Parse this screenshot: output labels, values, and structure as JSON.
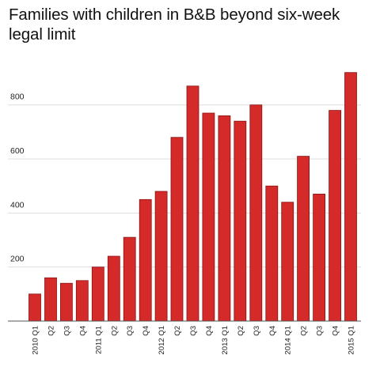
{
  "chart_data": {
    "type": "bar",
    "title": "Families with children in B&B beyond six-week legal limit",
    "xlabel": "",
    "ylabel": "",
    "ylim": [
      0,
      950
    ],
    "yticks": [
      200,
      400,
      600,
      800
    ],
    "grid": true,
    "bar_color": "#d42a2a",
    "bar_edge_color": "#8a1212",
    "categories": [
      "2010 Q1",
      "Q2",
      "Q3",
      "Q4",
      "2011 Q1",
      "Q2",
      "Q3",
      "Q4",
      "2012 Q1",
      "Q2",
      "Q3",
      "Q4",
      "2013 Q1",
      "Q2",
      "Q3",
      "Q4",
      "2014 Q1",
      "Q2",
      "Q3",
      "Q4",
      "2015 Q1"
    ],
    "values": [
      100,
      160,
      140,
      150,
      200,
      240,
      310,
      450,
      480,
      680,
      870,
      770,
      760,
      740,
      800,
      500,
      440,
      610,
      470,
      780,
      920
    ]
  }
}
